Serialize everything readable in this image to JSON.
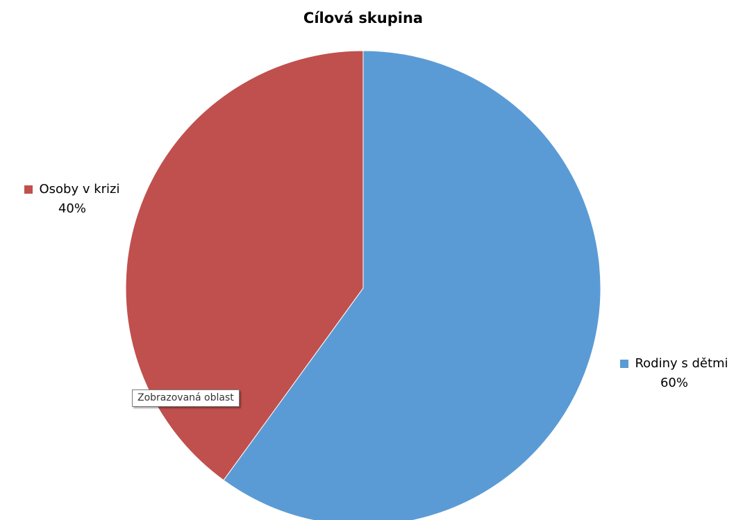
{
  "chart_data": {
    "type": "pie",
    "title": "Cílová skupina",
    "slices": [
      {
        "label": "Rodiny s dětmi",
        "value": 60,
        "display": "60%",
        "color": "#5b9bd5"
      },
      {
        "label": "Osoby v krizi",
        "value": 40,
        "display": "40%",
        "color": "#c0504d"
      }
    ],
    "start_angle_deg": 0,
    "direction": "clockwise",
    "data_labels": "outside, with legend key, category name and percentage"
  },
  "tooltip": {
    "text": "Zobrazovaná oblast"
  }
}
